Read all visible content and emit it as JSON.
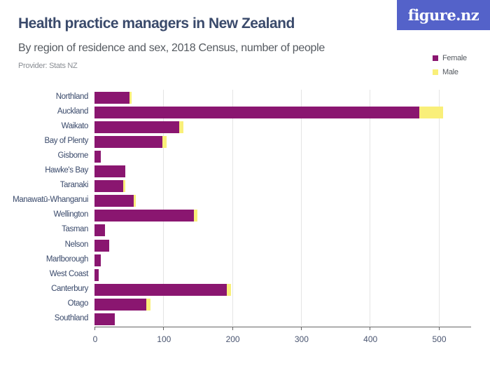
{
  "header": {
    "title": "Health practice managers in New Zealand",
    "subtitle": "By region of residence and sex, 2018 Census, number of people",
    "provider": "Provider: Stats NZ",
    "logo": "figure.nz"
  },
  "legend": [
    {
      "label": "Female",
      "color": "#8a1670"
    },
    {
      "label": "Male",
      "color": "#f9ef79"
    }
  ],
  "chart_data": {
    "type": "bar",
    "orientation": "horizontal",
    "stacked": true,
    "title": "Health practice managers in New Zealand",
    "subtitle": "By region of residence and sex, 2018 Census, number of people",
    "xlabel": "",
    "ylabel": "",
    "xlim": [
      0,
      550
    ],
    "xticks": [
      0,
      100,
      200,
      300,
      400,
      500
    ],
    "grid": true,
    "legend_position": "top-right",
    "categories": [
      "Northland",
      "Auckland",
      "Waikato",
      "Bay of Plenty",
      "Gisborne",
      "Hawke's Bay",
      "Taranaki",
      "Manawatū-Whanganui",
      "Wellington",
      "Tasman",
      "Nelson",
      "Marlborough",
      "West Coast",
      "Canterbury",
      "Otago",
      "Southland"
    ],
    "series": [
      {
        "name": "Female",
        "color": "#8a1670",
        "values": [
          51,
          472,
          123,
          99,
          9,
          45,
          42,
          57,
          144,
          15,
          21,
          9,
          6,
          192,
          75,
          30
        ]
      },
      {
        "name": "Male",
        "color": "#f9ef79",
        "values": [
          3,
          35,
          6,
          6,
          0,
          0,
          3,
          3,
          6,
          0,
          0,
          0,
          0,
          6,
          6,
          0
        ]
      }
    ]
  }
}
